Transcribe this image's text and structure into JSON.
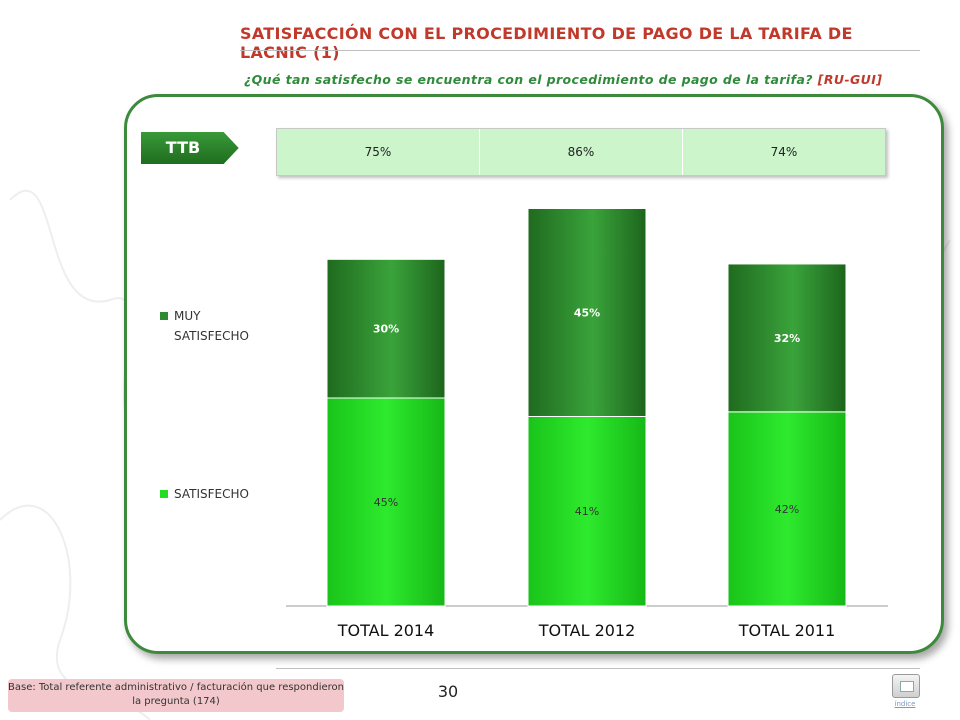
{
  "title": "SATISFACCIÓN CON EL PROCEDIMIENTO DE PAGO DE LA TARIFA DE LACNIC (1)",
  "subtitle": {
    "question": "¿Qué tan satisfecho se encuentra con el procedimiento de pago de la tarifa?",
    "tag": "[RU-GUI]"
  },
  "ttb": {
    "label": "TTB",
    "values": [
      "75%",
      "86%",
      "74%"
    ]
  },
  "colors": {
    "muy_satisfecho": "#2e8b2e",
    "satisfecho": "#22dd22",
    "title": "#c0392b",
    "subtitle": "#2e8b3a",
    "panel_border": "#3d8a3d",
    "ttb_row": "#ccf5cc",
    "base_box": "#f2c8cc"
  },
  "chart_data": {
    "type": "bar",
    "stacked": true,
    "categories": [
      "TOTAL 2014",
      "TOTAL 2012",
      "TOTAL 2011"
    ],
    "series": [
      {
        "name": "SATISFECHO",
        "values": [
          45,
          41,
          42
        ],
        "labels": [
          "45%",
          "41%",
          "42%"
        ]
      },
      {
        "name": "MUY SATISFECHO",
        "values": [
          30,
          45,
          32
        ],
        "labels": [
          "30%",
          "45%",
          "32%"
        ]
      }
    ],
    "ylim": [
      0,
      90
    ],
    "grid": false,
    "legend_position": "left",
    "legend": [
      {
        "name": "MUY SATISFECHO",
        "text": "MUY SATISFECHO",
        "color": "#2e8b2e"
      },
      {
        "name": "SATISFECHO",
        "text": "SATISFECHO",
        "color": "#22dd22"
      }
    ]
  },
  "footer": {
    "base_note": "Base: Total referente administrativo / facturación que respondieron la pregunta (174)",
    "page_number": "30",
    "index_label": "índice"
  }
}
